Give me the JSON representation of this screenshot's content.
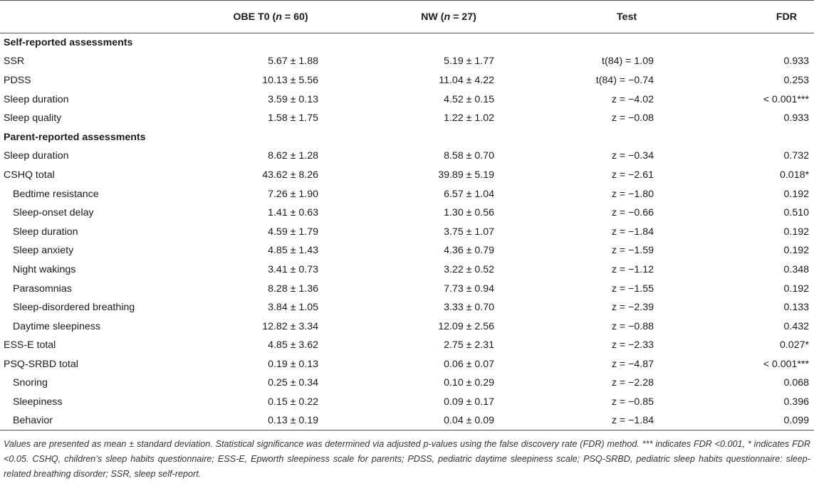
{
  "table": {
    "headers": {
      "col0": "",
      "col1_prefix": "OBE T0 (",
      "col1_n": "n",
      "col1_suffix": " = 60)",
      "col2_prefix": "NW (",
      "col2_n": "n",
      "col2_suffix": " = 27)",
      "col3": "Test",
      "col4": "FDR"
    },
    "sections": [
      {
        "title": "Self-reported assessments",
        "rows": [
          {
            "label": "SSR",
            "obe": "5.67 ± 1.88",
            "nw": "5.19 ± 1.77",
            "test": "t(84) = 1.09",
            "fdr": "0.933"
          },
          {
            "label": "PDSS",
            "obe": "10.13 ± 5.56",
            "nw": "11.04 ± 4.22",
            "test": "t(84) = −0.74",
            "fdr": "0.253"
          },
          {
            "label": "Sleep duration",
            "obe": "3.59 ± 0.13",
            "nw": "4.52 ± 0.15",
            "test": "z = −4.02",
            "fdr": "< 0.001***"
          },
          {
            "label": "Sleep quality",
            "obe": "1.58 ± 1.75",
            "nw": "1.22 ± 1.02",
            "test": "z = −0.08",
            "fdr": "0.933"
          }
        ]
      },
      {
        "title": "Parent-reported assessments",
        "rows": [
          {
            "label": "Sleep duration",
            "obe": "8.62 ± 1.28",
            "nw": "8.58 ± 0.70",
            "test": "z = −0.34",
            "fdr": "0.732"
          },
          {
            "label": "CSHQ total",
            "obe": "43.62 ± 8.26",
            "nw": "39.89 ± 5.19",
            "test": "z = −2.61",
            "fdr": "0.018*"
          },
          {
            "label": "Bedtime resistance",
            "sub": true,
            "obe": "7.26 ± 1.90",
            "nw": "6.57 ± 1.04",
            "test": "z = −1.80",
            "fdr": "0.192"
          },
          {
            "label": "Sleep-onset delay",
            "sub": true,
            "obe": "1.41 ± 0.63",
            "nw": "1.30 ± 0.56",
            "test": "z = −0.66",
            "fdr": "0.510"
          },
          {
            "label": "Sleep duration",
            "sub": true,
            "obe": "4.59 ± 1.79",
            "nw": "3.75 ± 1.07",
            "test": "z = −1.84",
            "fdr": "0.192"
          },
          {
            "label": "Sleep anxiety",
            "sub": true,
            "obe": "4.85 ± 1.43",
            "nw": "4.36 ± 0.79",
            "test": "z = −1.59",
            "fdr": "0.192"
          },
          {
            "label": "Night wakings",
            "sub": true,
            "obe": "3.41 ± 0.73",
            "nw": "3.22 ± 0.52",
            "test": "z = −1.12",
            "fdr": "0.348"
          },
          {
            "label": "Parasomnias",
            "sub": true,
            "obe": "8.28 ± 1.36",
            "nw": "7.73 ± 0.94",
            "test": "z = −1.55",
            "fdr": "0.192"
          },
          {
            "label": "Sleep-disordered breathing",
            "sub": true,
            "obe": "3.84 ± 1.05",
            "nw": "3.33 ± 0.70",
            "test": "z = −2.39",
            "fdr": "0.133"
          },
          {
            "label": "Daytime sleepiness",
            "sub": true,
            "obe": "12.82 ± 3.34",
            "nw": "12.09 ± 2.56",
            "test": "z = −0.88",
            "fdr": "0.432"
          },
          {
            "label": "ESS-E total",
            "obe": "4.85 ± 3.62",
            "nw": "2.75 ± 2.31",
            "test": "z = −2.33",
            "fdr": "0.027*"
          },
          {
            "label": "PSQ-SRBD total",
            "obe": "0.19 ± 0.13",
            "nw": "0.06 ± 0.07",
            "test": "z = −4.87",
            "fdr": "< 0.001***"
          },
          {
            "label": "Snoring",
            "sub": true,
            "obe": "0.25 ± 0.34",
            "nw": "0.10 ± 0.29",
            "test": "z = −2.28",
            "fdr": "0.068"
          },
          {
            "label": "Sleepiness",
            "sub": true,
            "obe": "0.15 ± 0.22",
            "nw": "0.09 ± 0.17",
            "test": "z = −0.85",
            "fdr": "0.396"
          },
          {
            "label": "Behavior",
            "sub": true,
            "obe": "0.13 ± 0.19",
            "nw": "0.04 ± 0.09",
            "test": "z = −1.84",
            "fdr": "0.099"
          }
        ]
      }
    ]
  },
  "footnote": "Values are presented as mean ± standard deviation. Statistical significance was determined via adjusted p-values using the false discovery rate (FDR) method. *** indicates FDR <0.001, * indicates FDR <0.05. CSHQ, children’s sleep habits questionnaire; ESS-E, Epworth sleepiness scale for parents; PDSS, pediatric daytime sleepiness scale; PSQ-SRBD, pediatric sleep habits questionnaire: sleep-related breathing disorder; SSR, sleep self-report."
}
